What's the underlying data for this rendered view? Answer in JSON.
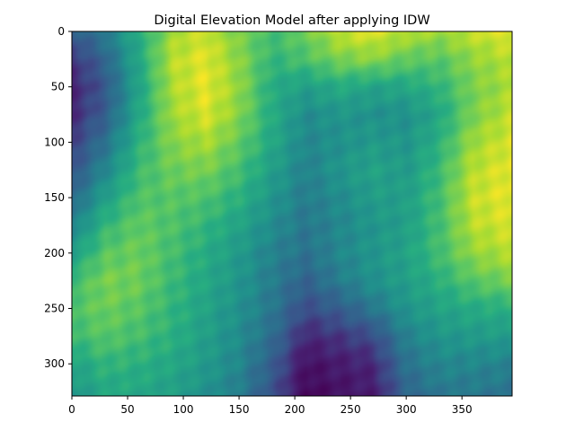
{
  "chart_data": {
    "type": "heatmap",
    "title": "Digital Elevation Model after applying IDW",
    "xlabel": "",
    "ylabel": "",
    "xlim": [
      0,
      395
    ],
    "ylim": [
      329,
      0
    ],
    "x_ticks": [
      0,
      50,
      100,
      150,
      200,
      250,
      300,
      350
    ],
    "y_ticks": [
      0,
      50,
      100,
      150,
      200,
      250,
      300
    ],
    "colormap": "viridis",
    "grid": false,
    "value_range": [
      0,
      1
    ],
    "relief": {
      "columns": [
        0,
        30,
        60,
        90,
        120,
        150,
        180,
        210,
        240,
        270,
        300,
        330,
        360,
        395
      ],
      "rows": [
        0,
        25,
        50,
        75,
        100,
        125,
        150,
        175,
        200,
        225,
        250,
        275,
        300,
        329
      ],
      "values": [
        [
          0.3,
          0.42,
          0.62,
          0.86,
          0.93,
          0.8,
          0.7,
          0.78,
          0.92,
          0.96,
          0.9,
          0.86,
          0.92,
          0.97
        ],
        [
          0.17,
          0.33,
          0.6,
          0.9,
          0.96,
          0.83,
          0.66,
          0.72,
          0.8,
          0.83,
          0.76,
          0.74,
          0.84,
          0.9
        ],
        [
          0.12,
          0.28,
          0.58,
          0.88,
          0.97,
          0.84,
          0.62,
          0.56,
          0.62,
          0.58,
          0.6,
          0.66,
          0.8,
          0.88
        ],
        [
          0.14,
          0.3,
          0.6,
          0.86,
          0.95,
          0.82,
          0.62,
          0.48,
          0.52,
          0.5,
          0.5,
          0.6,
          0.8,
          0.92
        ],
        [
          0.2,
          0.38,
          0.64,
          0.82,
          0.88,
          0.76,
          0.6,
          0.46,
          0.5,
          0.54,
          0.52,
          0.64,
          0.86,
          0.95
        ],
        [
          0.26,
          0.46,
          0.68,
          0.78,
          0.8,
          0.7,
          0.56,
          0.44,
          0.52,
          0.58,
          0.54,
          0.68,
          0.9,
          0.97
        ],
        [
          0.34,
          0.56,
          0.72,
          0.74,
          0.72,
          0.64,
          0.52,
          0.42,
          0.48,
          0.55,
          0.56,
          0.7,
          0.92,
          0.97
        ],
        [
          0.44,
          0.66,
          0.76,
          0.72,
          0.66,
          0.58,
          0.48,
          0.4,
          0.46,
          0.52,
          0.56,
          0.7,
          0.9,
          0.95
        ],
        [
          0.56,
          0.74,
          0.78,
          0.7,
          0.62,
          0.54,
          0.44,
          0.38,
          0.46,
          0.52,
          0.58,
          0.7,
          0.84,
          0.9
        ],
        [
          0.68,
          0.8,
          0.78,
          0.68,
          0.6,
          0.52,
          0.42,
          0.32,
          0.42,
          0.5,
          0.56,
          0.64,
          0.74,
          0.8
        ],
        [
          0.72,
          0.78,
          0.74,
          0.66,
          0.58,
          0.5,
          0.4,
          0.24,
          0.3,
          0.4,
          0.52,
          0.58,
          0.62,
          0.64
        ],
        [
          0.68,
          0.74,
          0.7,
          0.64,
          0.56,
          0.48,
          0.36,
          0.14,
          0.18,
          0.24,
          0.44,
          0.52,
          0.54,
          0.55
        ],
        [
          0.58,
          0.66,
          0.64,
          0.6,
          0.54,
          0.46,
          0.3,
          0.06,
          0.1,
          0.14,
          0.38,
          0.46,
          0.46,
          0.44
        ],
        [
          0.52,
          0.6,
          0.6,
          0.56,
          0.5,
          0.42,
          0.26,
          0.02,
          0.06,
          0.1,
          0.32,
          0.4,
          0.4,
          0.38
        ]
      ]
    }
  }
}
